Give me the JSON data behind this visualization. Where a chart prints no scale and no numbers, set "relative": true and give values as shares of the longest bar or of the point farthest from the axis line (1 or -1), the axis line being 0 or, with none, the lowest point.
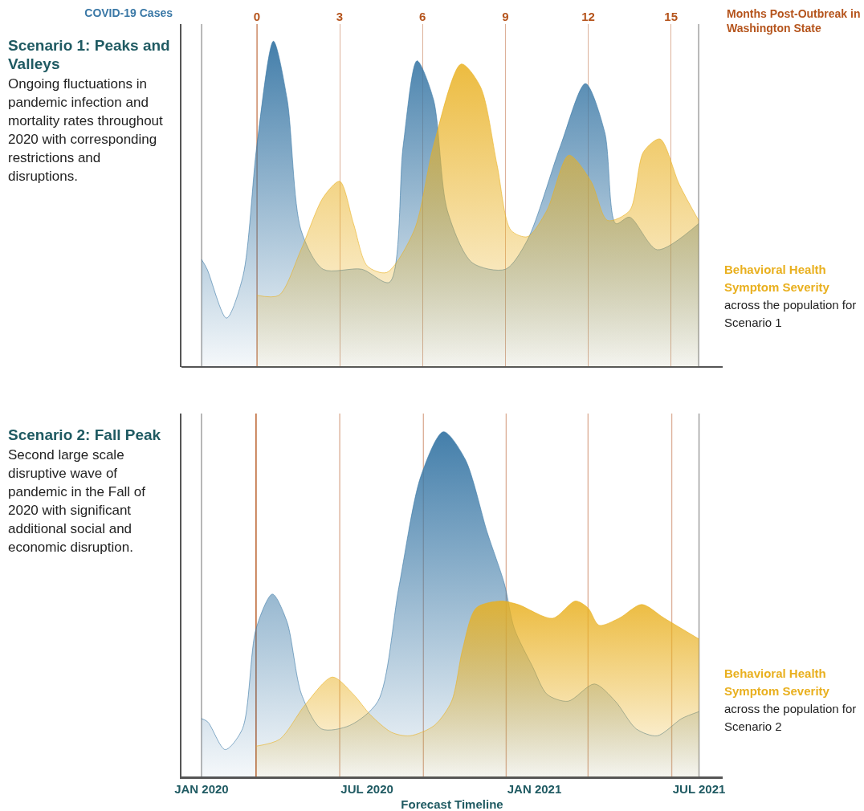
{
  "chart_data": [
    {
      "type": "area",
      "title": "Scenario 1: Peaks and Valleys",
      "subtitle": "Ongoing fluctuations in pandemic infection and mortality rates throughout 2020 with corresponding restrictions and disruptions.",
      "xlabel": "Months Post-Outbreak in Washington State",
      "relative": true,
      "grid": "x",
      "xlim": [
        -2.73,
        16.87
      ],
      "xticks": [
        0,
        3,
        6,
        9,
        12,
        15
      ],
      "annotations": [
        "across the population for Scenario 1"
      ],
      "series": [
        {
          "name": "COVID-19 Cases",
          "color": "#3a78a6",
          "x": [
            -2,
            -1.8,
            -1.1,
            -0.5,
            0,
            0.6,
            1.1,
            1.6,
            2.4,
            3.8,
            4.8,
            5.3,
            5.8,
            6.4,
            6.9,
            7.8,
            9.0,
            9.8,
            11.0,
            11.9,
            12.6,
            13.0,
            13.5,
            14.5,
            16
          ],
          "values": [
            0.33,
            0.3,
            0.15,
            0.28,
            0.68,
            1.0,
            0.82,
            0.42,
            0.3,
            0.3,
            0.26,
            0.68,
            0.94,
            0.82,
            0.48,
            0.32,
            0.3,
            0.39,
            0.68,
            0.87,
            0.72,
            0.44,
            0.46,
            0.36,
            0.44
          ]
        },
        {
          "name": "Behavioral Health Symptom Severity",
          "color": "#e9b01f",
          "x": [
            0,
            0.8,
            1.6,
            2.4,
            3.0,
            3.5,
            4.0,
            4.7,
            5.7,
            6.4,
            7.4,
            8.1,
            8.7,
            9.2,
            9.8,
            10.5,
            11.3,
            12.1,
            12.7,
            13.5,
            14.0,
            14.6,
            15.3,
            16
          ],
          "values": [
            0.22,
            0.22,
            0.36,
            0.52,
            0.57,
            0.44,
            0.31,
            0.29,
            0.42,
            0.68,
            0.93,
            0.86,
            0.62,
            0.42,
            0.4,
            0.48,
            0.65,
            0.57,
            0.45,
            0.48,
            0.66,
            0.7,
            0.56,
            0.45
          ]
        }
      ],
      "ref_lines": [
        {
          "axis": "x",
          "value": -2,
          "color": "#9a9a9a"
        },
        {
          "axis": "x",
          "value": 16,
          "color": "#9a9a9a"
        },
        {
          "axis": "x",
          "value": 0,
          "color": "#b5541c"
        }
      ]
    },
    {
      "type": "area",
      "title": "Scenario 2: Fall Peak",
      "subtitle": "Second large scale disruptive wave of pandemic in the Fall of 2020 with significant additional social and economic disruption.",
      "xlabel": "Forecast Timeline",
      "relative": true,
      "xlim": [
        "2019-12-10",
        "2021-07-27"
      ],
      "xticks": [
        {
          "value": "2020-01-01",
          "label": "JAN 2020"
        },
        {
          "value": "2020-07-01",
          "label": "JUL 2020"
        },
        {
          "value": "2021-01-01",
          "label": "JAN 2021"
        },
        {
          "value": "2021-07-01",
          "label": "JUL 2021"
        }
      ],
      "annotations": [
        "across the population for Scenario 2"
      ],
      "series": [
        {
          "color": "#3a78a6",
          "x": [
            "2020-01-01",
            "2020-01-08",
            "2020-01-27",
            "2020-02-15",
            "2020-03-01",
            "2020-03-19",
            "2020-04-04",
            "2020-04-20",
            "2020-05-12",
            "2020-06-12",
            "2020-07-13",
            "2020-08-05",
            "2020-08-29",
            "2020-09-23",
            "2020-10-17",
            "2020-11-10",
            "2020-11-29",
            "2020-12-10",
            "2020-12-30",
            "2021-01-15",
            "2021-02-07",
            "2021-03-08",
            "2021-03-31",
            "2021-04-23",
            "2021-05-16",
            "2021-06-12",
            "2021-07-01"
          ],
          "values": [
            0.17,
            0.16,
            0.08,
            0.14,
            0.43,
            0.53,
            0.45,
            0.24,
            0.14,
            0.15,
            0.22,
            0.55,
            0.87,
            1.0,
            0.92,
            0.71,
            0.56,
            0.43,
            0.32,
            0.24,
            0.22,
            0.27,
            0.22,
            0.14,
            0.12,
            0.17,
            0.19
          ]
        },
        {
          "name": "Behavioral Health Symptom Severity",
          "color": "#e9b01f",
          "x": [
            "2020-03-01",
            "2020-03-27",
            "2020-04-24",
            "2020-05-24",
            "2020-06-16",
            "2020-07-05",
            "2020-07-28",
            "2020-08-17",
            "2020-09-13",
            "2020-10-02",
            "2020-10-14",
            "2020-10-29",
            "2020-11-25",
            "2020-12-14",
            "2021-01-21",
            "2021-02-15",
            "2021-03-01",
            "2021-03-13",
            "2021-04-04",
            "2021-04-29",
            "2021-05-24",
            "2021-07-01"
          ],
          "values": [
            0.09,
            0.11,
            0.21,
            0.29,
            0.24,
            0.18,
            0.13,
            0.12,
            0.15,
            0.22,
            0.37,
            0.49,
            0.51,
            0.5,
            0.46,
            0.51,
            0.49,
            0.44,
            0.46,
            0.5,
            0.46,
            0.4
          ]
        }
      ],
      "ref_lines": [
        {
          "axis": "x",
          "value": "2020-01-01",
          "color": "#9a9a9a"
        },
        {
          "axis": "x",
          "value": "2021-07-01",
          "color": "#9a9a9a"
        },
        {
          "axis": "x",
          "value": "2020-03-01",
          "color": "#b5541c"
        },
        {
          "axis": "x",
          "value": "2020-06-01",
          "color": "#ddb19a"
        },
        {
          "axis": "x",
          "value": "2020-09-01",
          "color": "#ddb19a"
        },
        {
          "axis": "x",
          "value": "2020-12-01",
          "color": "#ddb19a"
        },
        {
          "axis": "x",
          "value": "2021-03-01",
          "color": "#ddb19a"
        },
        {
          "axis": "x",
          "value": "2021-06-01",
          "color": "#ddb19a"
        }
      ]
    }
  ]
}
